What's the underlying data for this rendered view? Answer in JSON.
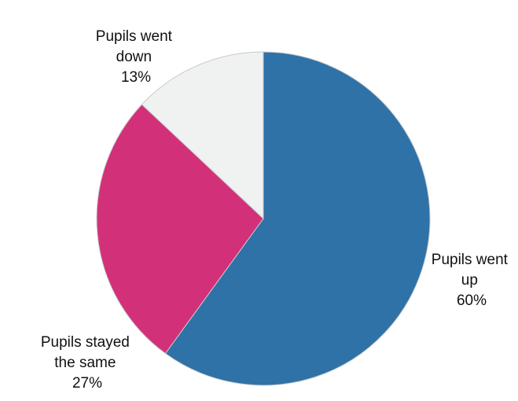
{
  "chart_data": {
    "type": "pie",
    "slices": [
      {
        "label": "Pupils went up",
        "value": 60,
        "value_label": "60%",
        "color": "#2e72a8"
      },
      {
        "label": "Pupils stayed the same",
        "value": 27,
        "value_label": "27%",
        "color": "#d3307a"
      },
      {
        "label": "Pupils went down",
        "value": 13,
        "value_label": "13%",
        "color": "#f0f1f1"
      }
    ],
    "start_angle": "12 o'clock",
    "direction": "clockwise",
    "legend": "none (labels placed beside slices)"
  },
  "labels": [
    {
      "lines": [
        "Pupils went",
        "up",
        "60%"
      ]
    },
    {
      "lines": [
        "Pupils stayed",
        "the same",
        "27%"
      ]
    },
    {
      "lines": [
        "Pupils went",
        "down",
        "13%"
      ]
    }
  ]
}
